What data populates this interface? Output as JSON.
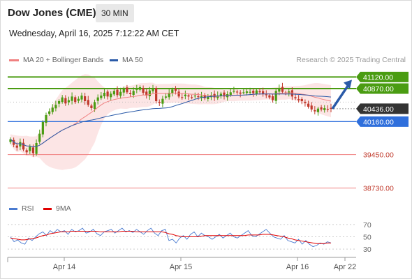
{
  "header": {
    "instrument": "Dow Jones (CME)",
    "interval": "30 MIN",
    "datetime": "Wednesday, April 16, 2025 7:12:22 AM CET",
    "credit": "Research © 2025 Trading Central"
  },
  "legend_main": [
    {
      "label": "MA 20 + Bollinger Bands",
      "color": "#f08080"
    },
    {
      "label": "MA 50",
      "color": "#2a5aa8"
    }
  ],
  "legend_rsi": [
    {
      "label": "RSI",
      "color": "#4a7bd0"
    },
    {
      "label": "9MA",
      "color": "#e00000"
    }
  ],
  "colors": {
    "resistance": "#4a9c12",
    "support": "#2f6fdc",
    "lower_support": "#f08080",
    "current": "#333333",
    "arrow": "#2a5aa8",
    "candle_up": "#4a9c12",
    "candle_down": "#c0392b",
    "band": "#fbdcdc"
  },
  "chart_data": [
    {
      "type": "candlestick",
      "title": "Dow Jones (CME) 30 MIN",
      "x_labels": [
        "Apr 14",
        "Apr 15",
        "Apr 16",
        "Apr 22"
      ],
      "ylim": [
        38500,
        41350
      ],
      "levels": [
        {
          "value": 41120,
          "label": "41120.00",
          "kind": "resistance"
        },
        {
          "value": 40870,
          "label": "40870.00",
          "kind": "resistance"
        },
        {
          "value": 40436,
          "label": "40436.00",
          "kind": "current"
        },
        {
          "value": 40160,
          "label": "40160.00",
          "kind": "support"
        },
        {
          "value": 39450,
          "label": "39450.00",
          "kind": "lower_support"
        },
        {
          "value": 38730,
          "label": "38730.00",
          "kind": "lower_support"
        }
      ],
      "closes": [
        39780,
        39660,
        39600,
        39720,
        39560,
        39500,
        39620,
        39480,
        39700,
        39900,
        40150,
        40300,
        40380,
        40460,
        40520,
        40600,
        40680,
        40550,
        40620,
        40700,
        40580,
        40650,
        40720,
        40600,
        40520,
        40450,
        40580,
        40680,
        40720,
        40780,
        40700,
        40760,
        40820,
        40730,
        40800,
        40870,
        40790,
        40750,
        40820,
        40860,
        40900,
        40780,
        40720,
        40830,
        40860,
        40600,
        40560,
        40650,
        40700,
        40780,
        40850,
        40820,
        40700,
        40680,
        40740,
        40700,
        40680,
        40720,
        40690,
        40710,
        40660,
        40700,
        40730,
        40680,
        40720,
        40760,
        40700,
        40750,
        40790,
        40820,
        40800,
        40760,
        40790,
        40810,
        40800,
        40770,
        40830,
        40790,
        40760,
        40740,
        40680,
        40620,
        40820,
        40880,
        40800,
        40780,
        40810,
        40700,
        40660,
        40620,
        40600,
        40560,
        40480,
        40420,
        40380,
        40440,
        40420,
        40450,
        40430,
        40436
      ],
      "overlays": [
        "MA 20 + Bollinger Bands",
        "MA 50"
      ],
      "projection_target": 41120
    },
    {
      "type": "line",
      "title": "RSI",
      "ylim": [
        20,
        80
      ],
      "yticks": [
        70,
        50,
        30
      ],
      "series": [
        {
          "name": "RSI",
          "values": [
            50,
            42,
            45,
            40,
            38,
            48,
            44,
            50,
            55,
            58,
            52,
            60,
            56,
            62,
            58,
            60,
            54,
            62,
            58,
            60,
            64,
            56,
            58,
            62,
            55,
            52,
            58,
            60,
            62,
            56,
            60,
            64,
            58,
            60,
            57,
            62,
            58,
            54,
            60,
            64,
            56,
            52,
            60,
            62,
            44,
            46,
            40,
            48,
            52,
            46,
            54,
            58,
            50,
            56,
            52,
            50,
            46,
            50,
            54,
            48,
            52,
            56,
            50,
            48,
            52,
            56,
            60,
            52,
            50,
            54,
            58,
            62,
            56,
            50,
            48,
            46,
            52,
            44,
            42,
            40,
            46,
            38,
            44,
            38,
            34,
            36,
            40,
            38,
            42,
            40
          ]
        },
        {
          "name": "9MA",
          "values": [
            48,
            47,
            46,
            45,
            45,
            46,
            47,
            48,
            50,
            52,
            53,
            55,
            56,
            57,
            58,
            58,
            58,
            59,
            59,
            59,
            59,
            59,
            59,
            59,
            59,
            58,
            58,
            58,
            58,
            58,
            58,
            59,
            59,
            59,
            59,
            58,
            58,
            58,
            58,
            58,
            58,
            58,
            58,
            57,
            55,
            54,
            52,
            51,
            50,
            50,
            50,
            50,
            50,
            51,
            52,
            52,
            52,
            52,
            52,
            52,
            52,
            52,
            52,
            52,
            52,
            52,
            53,
            53,
            53,
            53,
            54,
            54,
            54,
            53,
            52,
            51,
            50,
            48,
            47,
            45,
            44,
            43,
            42,
            41,
            40,
            39,
            39,
            39,
            40,
            40
          ]
        }
      ]
    }
  ]
}
